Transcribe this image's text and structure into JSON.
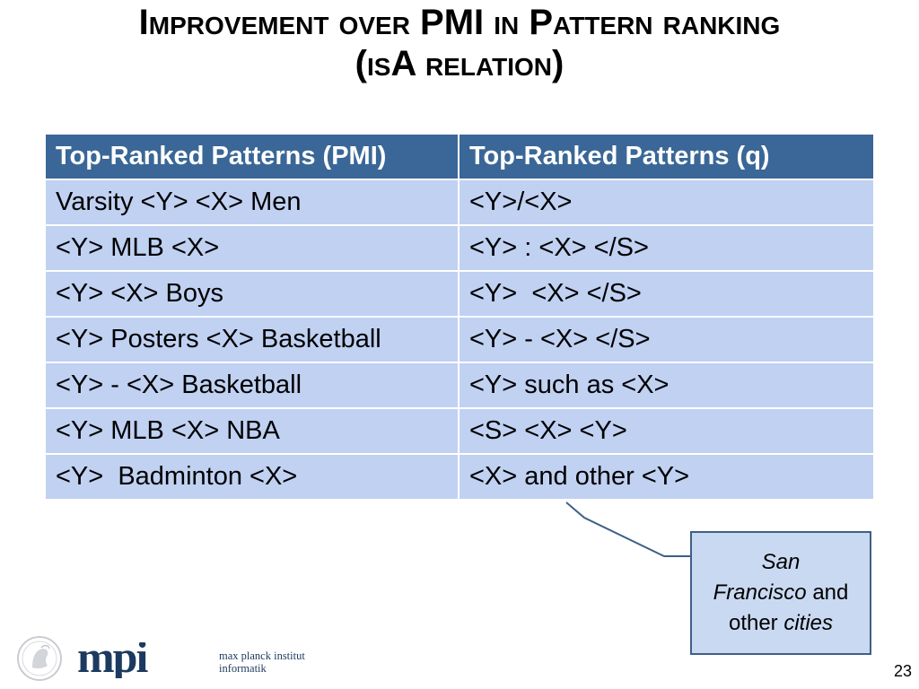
{
  "slide": {
    "title_line1": "Improvement over PMI in Pattern ranking",
    "title_line2": "(isA relation)",
    "page_number": "23"
  },
  "table": {
    "headers": [
      "Top-Ranked Patterns (PMI)",
      "Top-Ranked Patterns (q)"
    ],
    "rows": [
      [
        "Varsity <Y> <X> Men",
        "<Y>/<X>"
      ],
      [
        "<Y> MLB <X>",
        "<Y> : <X> </S>"
      ],
      [
        "<Y> <X> Boys",
        "<Y>  <X> </S>"
      ],
      [
        "<Y> Posters <X> Basketball",
        "<Y> - <X> </S>"
      ],
      [
        "<Y> - <X> Basketball",
        "<Y> such as <X>"
      ],
      [
        "<Y> MLB <X> NBA",
        "<S> <X> <Y>"
      ],
      [
        "<Y>  Badminton <X>",
        "<X> and other <Y>"
      ]
    ]
  },
  "callout": {
    "part1": "San",
    "part2": "Francisco",
    "part3": " and",
    "part4": "other ",
    "part5": "cities"
  },
  "footer": {
    "logo_text": "mpi",
    "institute_line1": "max planck institut",
    "institute_line2": "informatik"
  },
  "colors": {
    "header_bg": "#3a6797",
    "row_bg": "#c0d1f2",
    "callout_bg": "#c9d9f1",
    "callout_border": "#3e5f86",
    "logo_blue": "#1c3a5f"
  }
}
